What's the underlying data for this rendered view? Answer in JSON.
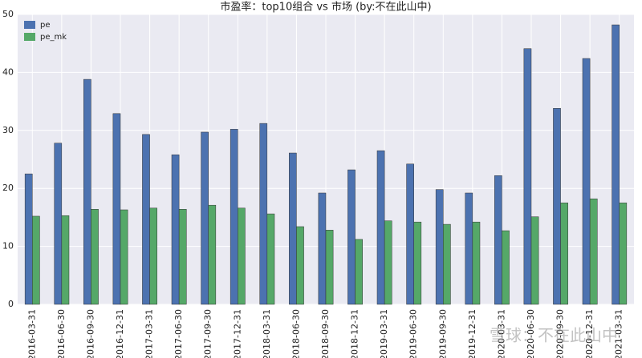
{
  "chart_data": {
    "type": "bar",
    "title": "市盈率：top10组合 vs 市场  (by:不在此山中)",
    "categories": [
      "2016-03-31",
      "2016-06-30",
      "2016-09-30",
      "2016-12-31",
      "2017-03-31",
      "2017-06-30",
      "2017-09-30",
      "2017-12-31",
      "2018-03-31",
      "2018-06-30",
      "2018-09-30",
      "2018-12-31",
      "2019-03-31",
      "2019-06-30",
      "2019-09-30",
      "2019-12-31",
      "2020-03-31",
      "2020-06-30",
      "2020-09-30",
      "2020-12-31",
      "2021-03-31"
    ],
    "series": [
      {
        "name": "pe",
        "color": "#4c72b0",
        "values": [
          22.5,
          27.8,
          38.8,
          32.9,
          29.3,
          25.8,
          29.7,
          30.2,
          31.2,
          26.1,
          19.2,
          23.2,
          26.5,
          24.2,
          19.8,
          19.2,
          22.2,
          44.1,
          33.8,
          42.4,
          48.2
        ]
      },
      {
        "name": "pe_mk",
        "color": "#55a868",
        "values": [
          15.2,
          15.3,
          16.4,
          16.3,
          16.6,
          16.4,
          17.1,
          16.6,
          15.6,
          13.4,
          12.8,
          11.2,
          14.4,
          14.2,
          13.8,
          14.2,
          12.7,
          15.1,
          17.5,
          18.2,
          17.5
        ]
      }
    ],
    "ylim": [
      0,
      50
    ],
    "yticks": [
      0,
      10,
      20,
      30,
      40,
      50
    ],
    "grid": true,
    "legend": "upper-left",
    "watermark": "雪球：不在此山中"
  }
}
